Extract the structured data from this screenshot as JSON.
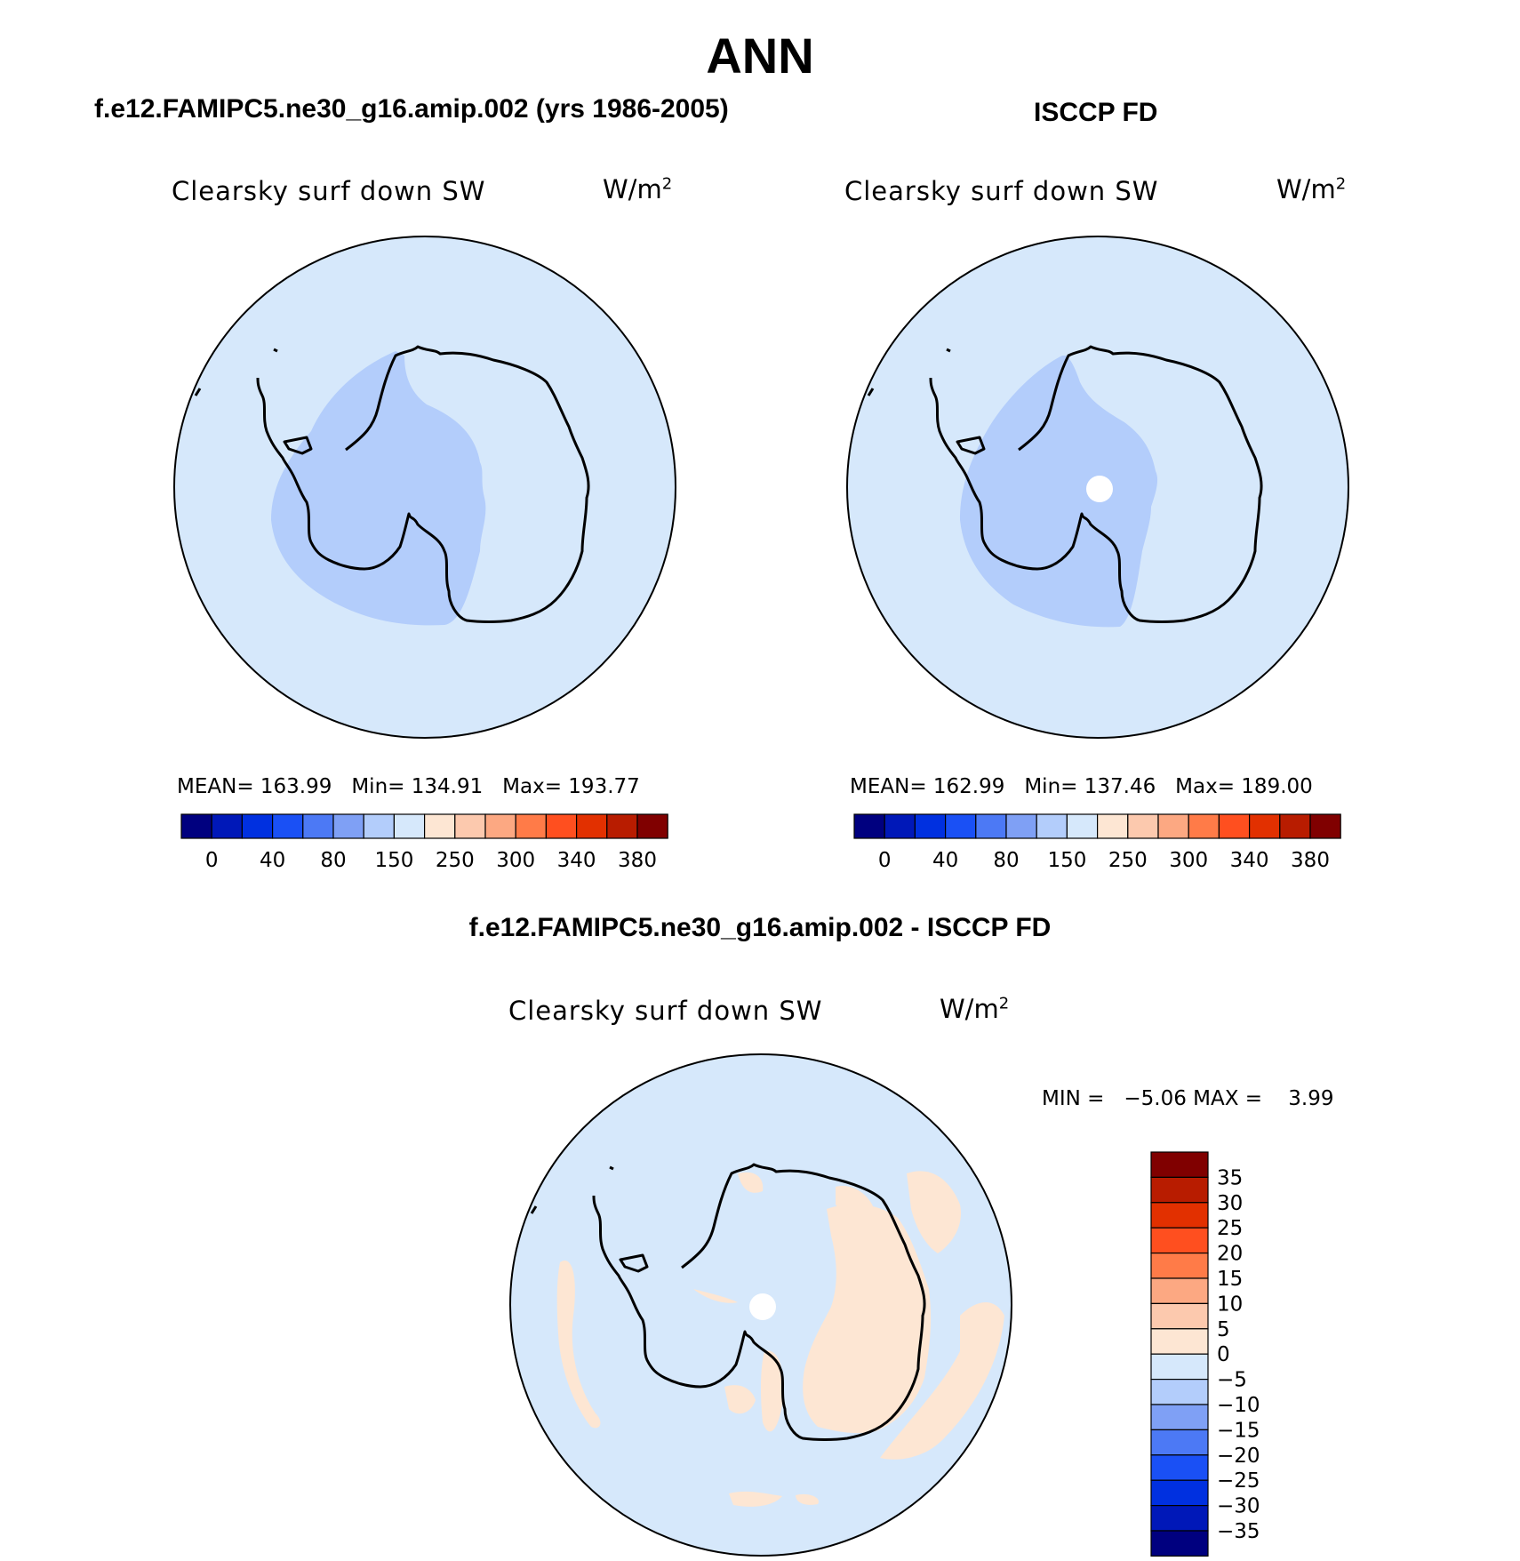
{
  "figure": {
    "title": "ANN",
    "colors": {
      "land_ice": "#d6e8fb",
      "low_region": "#b3cdfb",
      "positive_diff": "#fde6d3",
      "missing": "#ffffff",
      "coastline": "#000000"
    }
  },
  "panels": {
    "model": {
      "title": "f.e12.FAMIPC5.ne30_g16.amip.002 (yrs 1986-2005)",
      "variable": "Clearsky surf down SW",
      "units_base": "W/m",
      "units_exp": "2",
      "stats": {
        "mean_label": "MEAN=",
        "mean": "163.99",
        "min_label": "Min=",
        "min": "134.91",
        "max_label": "Max=",
        "max": "193.77"
      }
    },
    "obs": {
      "title": "ISCCP FD",
      "variable": "Clearsky surf down SW",
      "units_base": "W/m",
      "units_exp": "2",
      "stats": {
        "mean_label": "MEAN=",
        "mean": "162.99",
        "min_label": "Min=",
        "min": "137.46",
        "max_label": "Max=",
        "max": "189.00"
      }
    },
    "diff": {
      "title": "f.e12.FAMIPC5.ne30_g16.amip.002 - ISCCP FD",
      "variable": "Clearsky surf down SW",
      "units_base": "W/m",
      "units_exp": "2",
      "minmax_text": "MIN =   −5.06 MAX =    3.99"
    }
  },
  "colorbars": {
    "absolute": {
      "colors": [
        "#00007f",
        "#0018b8",
        "#0030e0",
        "#1a50f5",
        "#4c79f5",
        "#7fa0f5",
        "#b3cdfb",
        "#d6e8fb",
        "#fde6d3",
        "#fcc9ae",
        "#fca882",
        "#ff7b48",
        "#ff4f1f",
        "#e23000",
        "#b81c00",
        "#800000"
      ],
      "labels": [
        "0",
        "40",
        "80",
        "150",
        "250",
        "300",
        "340",
        "380"
      ]
    },
    "difference": {
      "colors": [
        "#800000",
        "#b81c00",
        "#e23000",
        "#ff4f1f",
        "#ff7b48",
        "#fca882",
        "#fcc9ae",
        "#fde6d3",
        "#d6e8fb",
        "#b3cdfb",
        "#7fa0f5",
        "#4c79f5",
        "#1a50f5",
        "#0030e0",
        "#0018b8",
        "#00007f"
      ],
      "labels": [
        "35",
        "30",
        "25",
        "20",
        "15",
        "10",
        "5",
        "0",
        "−5",
        "−10",
        "−15",
        "−20",
        "−25",
        "−30",
        "−35"
      ]
    }
  }
}
